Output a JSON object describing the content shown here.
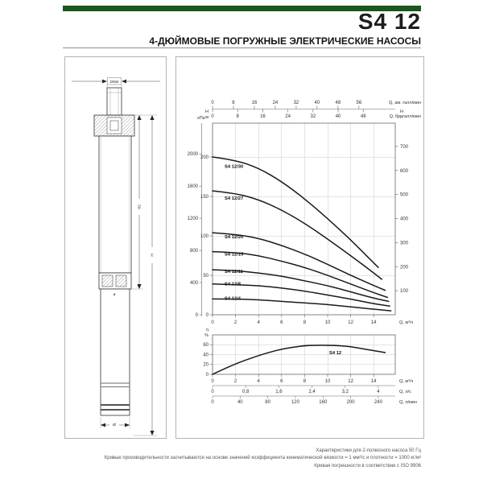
{
  "header": {
    "title": "S4 12",
    "subtitle": "4-ДЮЙМОВЫЕ ПОГРУЖНЫЕ ЭЛЕКТРИЧЕСКИЕ НАСОСЫ",
    "accent_color": "#1a571d"
  },
  "drawing": {
    "dim_nominal": "DNM",
    "dim_total_height": "H",
    "dim_pump_height": "H2",
    "dim_diameter": "Ø",
    "dim_motor_diameter": "ø"
  },
  "chart_data": [
    {
      "id": "head-flow",
      "type": "line",
      "title": "",
      "grid": true,
      "x_max_m3h": 15.9,
      "axes": {
        "top_us_gpm": {
          "label": "Q, ам. галл/мин",
          "ticks": [
            0,
            8,
            16,
            24,
            32,
            40,
            48,
            56
          ],
          "to_m3h": 0.2271
        },
        "top_imp_gpm": {
          "label": "Q, бр. галл/мин",
          "ticks": [
            0,
            8,
            16,
            24,
            32,
            40,
            48
          ],
          "to_m3h": 0.2728
        },
        "bottom_m3h": {
          "label": "Q, м³/ч",
          "ticks": [
            0,
            2,
            4,
            6,
            8,
            10,
            12,
            14
          ]
        },
        "left_kpa": {
          "label": "кПа",
          "ticks": [
            0,
            400,
            800,
            1200,
            1600,
            2000
          ],
          "to_m": 0.10197
        },
        "left_m": {
          "label": "H, м",
          "ticks": [
            0,
            50,
            100,
            150,
            200
          ],
          "max": 243
        },
        "right_ft": {
          "label": "H, ft",
          "ticks": [
            100,
            200,
            300,
            400,
            500,
            600,
            700
          ],
          "to_m": 0.3048
        }
      },
      "series": [
        {
          "name": "S4 12/30",
          "points": [
            [
              0,
              200
            ],
            [
              2,
              196
            ],
            [
              4,
              186
            ],
            [
              6,
              169
            ],
            [
              8,
              147
            ],
            [
              10,
              122
            ],
            [
              12,
              95
            ],
            [
              13.5,
              73
            ],
            [
              14.4,
              60
            ]
          ]
        },
        {
          "name": "S4 12/27",
          "points": [
            [
              0,
              157
            ],
            [
              2,
              154
            ],
            [
              4,
              146
            ],
            [
              6,
              133
            ],
            [
              8,
              116
            ],
            [
              10,
              96
            ],
            [
              12,
              75
            ],
            [
              14,
              53
            ],
            [
              14.7,
              45
            ]
          ]
        },
        {
          "name": "S4 12/20",
          "points": [
            [
              0,
              104
            ],
            [
              2,
              102
            ],
            [
              4,
              97
            ],
            [
              6,
              88
            ],
            [
              8,
              77
            ],
            [
              10,
              64
            ],
            [
              12,
              50
            ],
            [
              14,
              37
            ],
            [
              15,
              31
            ]
          ]
        },
        {
          "name": "S4 12/15",
          "points": [
            [
              0,
              80
            ],
            [
              2,
              79
            ],
            [
              4,
              75
            ],
            [
              6,
              68
            ],
            [
              8,
              60
            ],
            [
              10,
              50
            ],
            [
              12,
              39
            ],
            [
              14,
              28
            ],
            [
              15.2,
              22
            ]
          ]
        },
        {
          "name": "S4 12/11",
          "points": [
            [
              0,
              57
            ],
            [
              2,
              56
            ],
            [
              4,
              53
            ],
            [
              6,
              49
            ],
            [
              8,
              43
            ],
            [
              10,
              37
            ],
            [
              12,
              29
            ],
            [
              14,
              21
            ],
            [
              15.3,
              17
            ]
          ]
        },
        {
          "name": "S4 12/8",
          "points": [
            [
              0,
              39
            ],
            [
              2,
              38
            ],
            [
              4,
              37
            ],
            [
              6,
              34
            ],
            [
              8,
              30
            ],
            [
              10,
              25
            ],
            [
              12,
              20
            ],
            [
              14,
              14
            ],
            [
              15.4,
              11
            ]
          ]
        },
        {
          "name": "S4 12/4",
          "points": [
            [
              0,
              20
            ],
            [
              2,
              20
            ],
            [
              4,
              19
            ],
            [
              6,
              17
            ],
            [
              8,
              15
            ],
            [
              10,
              13
            ],
            [
              12,
              10
            ],
            [
              14,
              7
            ],
            [
              15.5,
              5
            ]
          ]
        }
      ]
    },
    {
      "id": "efficiency",
      "type": "line",
      "grid": true,
      "axes": {
        "left_pct": {
          "label": "η, %",
          "ticks": [
            0,
            20,
            40,
            60
          ],
          "max": 80
        },
        "bottom_m3h": {
          "label": "Q, м³/ч",
          "ticks": [
            0,
            2,
            4,
            6,
            8,
            10,
            12,
            14
          ]
        },
        "bottom_ls": {
          "label": "Q, л/с",
          "ticks": [
            0,
            0.8,
            1.6,
            2.4,
            3.2,
            4
          ],
          "tick_labels": [
            "0",
            "0,8",
            "1,6",
            "2,4",
            "3,2",
            "4"
          ],
          "to_m3h": 3.6
        },
        "bottom_lmin": {
          "label": "Q, л/мин",
          "ticks": [
            0,
            40,
            80,
            120,
            160,
            200,
            240
          ],
          "to_m3h": 0.06
        }
      },
      "series": [
        {
          "name": "S4 12",
          "points": [
            [
              0,
              0
            ],
            [
              1,
              11
            ],
            [
              2,
              21
            ],
            [
              3,
              30
            ],
            [
              4,
              38
            ],
            [
              5,
              45
            ],
            [
              6,
              51
            ],
            [
              7,
              55
            ],
            [
              8,
              58
            ],
            [
              9,
              59
            ],
            [
              10,
              59
            ],
            [
              11,
              58
            ],
            [
              12,
              56
            ],
            [
              13,
              52
            ],
            [
              14,
              48
            ],
            [
              15,
              44
            ]
          ]
        }
      ]
    }
  ],
  "footer": {
    "lines": [
      "Характеристики для 2-полюсного насоса 50 Гц",
      "Кривые производительности засчитываются на основе значений коэффициента кинематической вязкости = 1 мм²/с и плотности = 1000 кг/м³",
      "Кривая погрешности в соответствии с ISO 9906"
    ]
  }
}
